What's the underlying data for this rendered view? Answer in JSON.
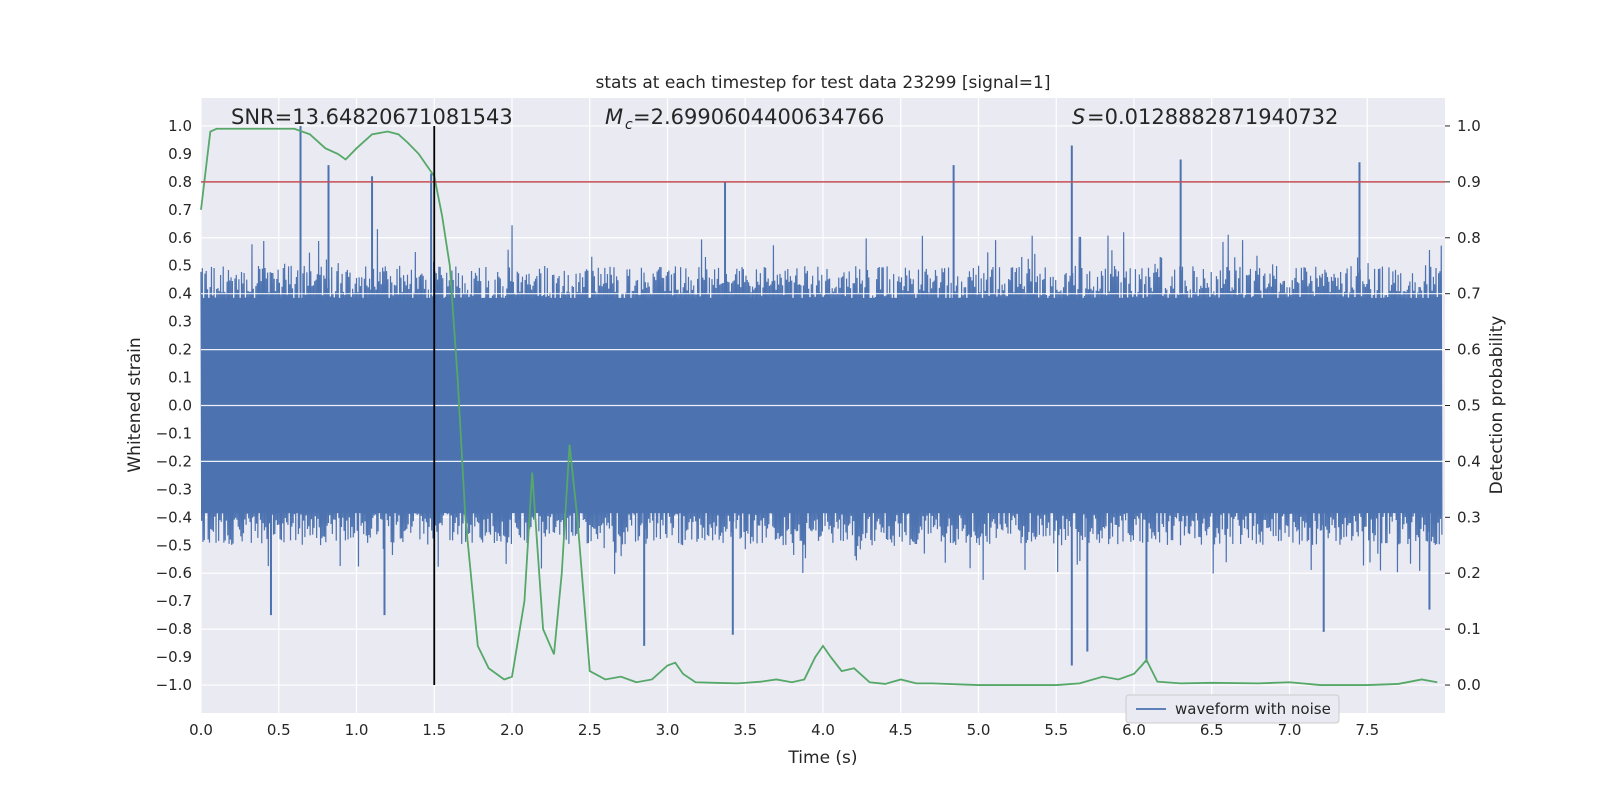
{
  "chart_data": {
    "type": "line",
    "title": "stats at each timestep for test data 23299 [signal=1]",
    "xlabel": "Time (s)",
    "ylabel": "Whitened strain",
    "y2label": "Detection probability",
    "xlim": [
      0.0,
      8.0
    ],
    "ylim": [
      -1.1,
      1.1
    ],
    "y2lim": [
      -0.05,
      1.05
    ],
    "xticks": [
      "0.0",
      "0.5",
      "1.0",
      "1.5",
      "2.0",
      "2.5",
      "3.0",
      "3.5",
      "4.0",
      "4.5",
      "5.0",
      "5.5",
      "6.0",
      "6.5",
      "7.0",
      "7.5"
    ],
    "yticks": [
      "1.0",
      "0.9",
      "0.8",
      "0.7",
      "0.6",
      "0.5",
      "0.4",
      "0.3",
      "0.2",
      "0.1",
      "0.0",
      "−0.1",
      "−0.2",
      "−0.3",
      "−0.4",
      "−0.5",
      "−0.6",
      "−0.7",
      "−0.8",
      "−0.9",
      "−1.0"
    ],
    "y2ticks": [
      "1.0",
      "0.9",
      "0.8",
      "0.7",
      "0.6",
      "0.5",
      "0.4",
      "0.3",
      "0.2",
      "0.1",
      "0.0"
    ],
    "grid": true,
    "legend": {
      "position": "bottom-right",
      "entries": [
        "waveform with noise"
      ]
    },
    "annotations": {
      "snr": "SNR=13.64820671081543",
      "mc": "=2.6990604400634766",
      "s": "=0.0128882871940732"
    },
    "threshold": {
      "axis": "y2",
      "value": 0.9,
      "color": "#c44e52"
    },
    "vline": {
      "x": 1.5,
      "color": "#000000"
    },
    "series": [
      {
        "name": "waveform with noise",
        "axis": "y",
        "color": "#4c72b0",
        "envelope": {
          "x": [
            0.0,
            0.25,
            0.5,
            0.75,
            1.0,
            1.25,
            1.5,
            1.75,
            2.0,
            2.25,
            2.5,
            2.75,
            3.0,
            3.25,
            3.5,
            3.75,
            4.0,
            4.25,
            4.5,
            4.75,
            5.0,
            5.25,
            5.5,
            5.75,
            6.0,
            6.25,
            6.5,
            6.75,
            7.0,
            7.25,
            7.5,
            7.75,
            7.98
          ],
          "high": [
            0.55,
            0.65,
            0.6,
            0.7,
            0.62,
            0.68,
            0.55,
            0.6,
            0.65,
            0.6,
            0.62,
            0.6,
            0.6,
            0.62,
            0.65,
            0.6,
            0.6,
            0.62,
            0.6,
            0.65,
            0.6,
            0.6,
            0.62,
            0.6,
            0.65,
            0.6,
            0.62,
            0.6,
            0.6,
            0.62,
            0.65,
            0.6,
            0.6
          ],
          "low": [
            -0.55,
            -0.62,
            -0.6,
            -0.65,
            -0.6,
            -0.62,
            -0.6,
            -0.6,
            -0.62,
            -0.6,
            -0.65,
            -0.6,
            -0.6,
            -0.62,
            -0.6,
            -0.65,
            -0.6,
            -0.6,
            -0.62,
            -0.6,
            -0.65,
            -0.6,
            -0.7,
            -0.65,
            -0.62,
            -0.6,
            -0.62,
            -0.6,
            -0.6,
            -0.62,
            -0.6,
            -0.62,
            -0.6
          ]
        },
        "peaks": [
          [
            0.64,
            1.0
          ],
          [
            0.82,
            0.86
          ],
          [
            1.1,
            0.82
          ],
          [
            1.48,
            0.83
          ],
          [
            3.37,
            0.8
          ],
          [
            4.84,
            0.86
          ],
          [
            5.6,
            0.93
          ],
          [
            6.3,
            0.88
          ],
          [
            7.45,
            0.87
          ],
          [
            0.45,
            -0.75
          ],
          [
            1.18,
            -0.75
          ],
          [
            2.85,
            -0.86
          ],
          [
            3.42,
            -0.82
          ],
          [
            5.6,
            -0.93
          ],
          [
            5.7,
            -0.88
          ],
          [
            6.08,
            -0.92
          ],
          [
            7.22,
            -0.81
          ],
          [
            7.9,
            -0.73
          ]
        ]
      },
      {
        "name": "",
        "axis": "y2",
        "color": "#55a868",
        "x": [
          0.0,
          0.06,
          0.1,
          0.2,
          0.4,
          0.6,
          0.7,
          0.8,
          0.88,
          0.93,
          1.0,
          1.1,
          1.2,
          1.27,
          1.33,
          1.4,
          1.45,
          1.5,
          1.55,
          1.6,
          1.65,
          1.7,
          1.78,
          1.85,
          1.95,
          2.0,
          2.08,
          2.13,
          2.2,
          2.27,
          2.32,
          2.37,
          2.42,
          2.5,
          2.6,
          2.7,
          2.8,
          2.9,
          3.0,
          3.05,
          3.1,
          3.18,
          3.3,
          3.45,
          3.6,
          3.7,
          3.8,
          3.88,
          3.95,
          4.0,
          4.05,
          4.12,
          4.2,
          4.3,
          4.4,
          4.5,
          4.6,
          4.7,
          5.0,
          5.5,
          5.65,
          5.8,
          5.9,
          6.0,
          6.05,
          6.08,
          6.15,
          6.3,
          6.5,
          6.8,
          7.0,
          7.2,
          7.5,
          7.7,
          7.85,
          7.95
        ],
        "y": [
          0.85,
          0.99,
          0.995,
          0.995,
          0.995,
          0.995,
          0.985,
          0.96,
          0.95,
          0.94,
          0.96,
          0.985,
          0.99,
          0.985,
          0.97,
          0.95,
          0.93,
          0.91,
          0.84,
          0.75,
          0.55,
          0.3,
          0.07,
          0.03,
          0.01,
          0.015,
          0.15,
          0.38,
          0.1,
          0.055,
          0.2,
          0.43,
          0.3,
          0.025,
          0.01,
          0.015,
          0.005,
          0.01,
          0.035,
          0.04,
          0.02,
          0.005,
          0.004,
          0.003,
          0.006,
          0.01,
          0.005,
          0.01,
          0.05,
          0.07,
          0.05,
          0.025,
          0.03,
          0.005,
          0.002,
          0.01,
          0.003,
          0.003,
          0.0,
          0.0,
          0.003,
          0.015,
          0.01,
          0.02,
          0.035,
          0.045,
          0.006,
          0.003,
          0.004,
          0.003,
          0.005,
          0.0,
          0.0,
          0.002,
          0.01,
          0.005
        ]
      }
    ]
  }
}
